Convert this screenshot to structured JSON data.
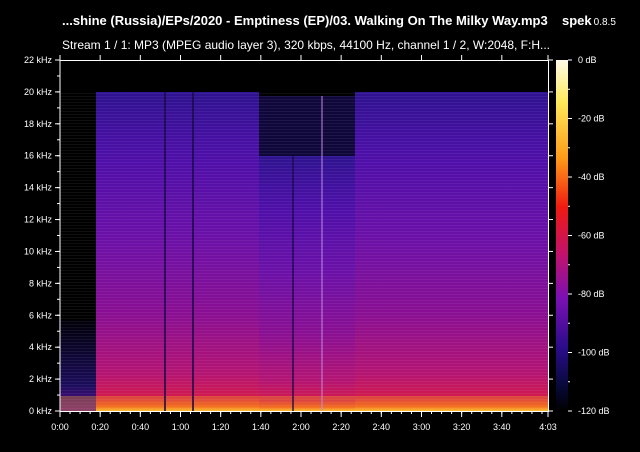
{
  "window": {
    "title": "...shine (Russia)/EPs/2020 - Emptiness (EP)/03. Walking On The Milky Way.mp3",
    "app_name": "spek",
    "app_version": "0.8.5",
    "stream_info": "Stream 1 / 1: MP3 (MPEG audio layer 3), 320 kbps, 44100 Hz, channel 1 / 2, W:2048, F:H..."
  },
  "spectrogram": {
    "freq_axis_labels": [
      "0 kHz",
      "2 kHz",
      "4 kHz",
      "6 kHz",
      "8 kHz",
      "10 kHz",
      "12 kHz",
      "14 kHz",
      "16 kHz",
      "18 kHz",
      "20 kHz",
      "22 kHz"
    ],
    "time_axis_labels": [
      "0:00",
      "0:20",
      "0:40",
      "1:00",
      "1:20",
      "1:40",
      "2:00",
      "2:20",
      "2:40",
      "3:00",
      "3:20",
      "3:40",
      "4:03"
    ],
    "db_scale_labels": [
      "0 dB",
      "-20 dB",
      "-40 dB",
      "-60 dB",
      "-80 dB",
      "-100 dB",
      "-120 dB"
    ],
    "duration_seconds": 243,
    "max_frequency_khz": 22,
    "content_cutoff_khz": 20,
    "lowered_cutoff_khz": 16,
    "lowered_cutoff_span": [
      "1:39",
      "2:27"
    ],
    "colors": {
      "background": "#000000",
      "low": "#0a0a40",
      "mid": "#4b0f9f",
      "high": "#d4164b",
      "peak": "#ffc21a",
      "max": "#fffbe8"
    }
  }
}
